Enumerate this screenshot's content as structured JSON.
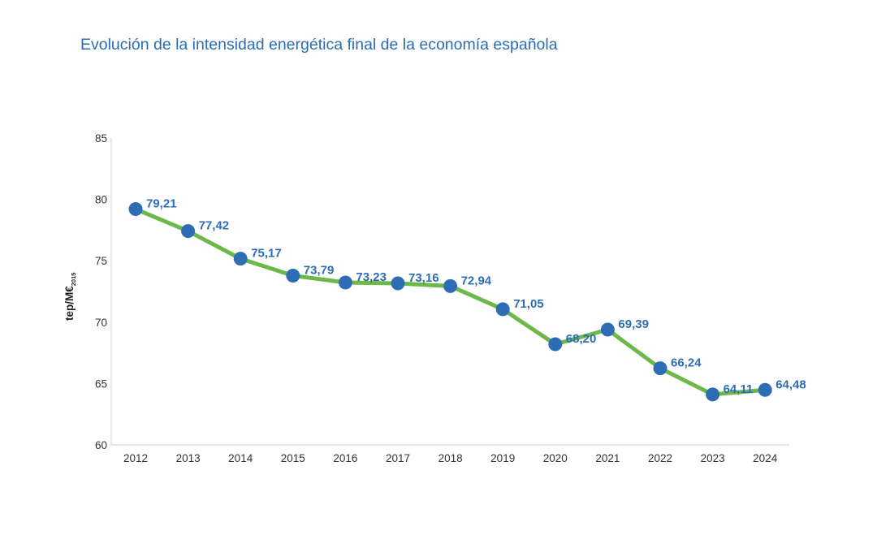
{
  "chart_data": {
    "type": "line",
    "title": "Evolución de la intensidad energética final de la economía española",
    "ylabel": "tep/M€",
    "ylabel_subscript": "2015",
    "xlabel": "",
    "categories": [
      "2012",
      "2013",
      "2014",
      "2015",
      "2016",
      "2017",
      "2018",
      "2019",
      "2020",
      "2021",
      "2022",
      "2023",
      "2024"
    ],
    "values": [
      79.21,
      77.42,
      75.17,
      73.79,
      73.23,
      73.16,
      72.94,
      71.05,
      68.2,
      69.39,
      66.24,
      64.11,
      64.48
    ],
    "data_labels": [
      "79,21",
      "77,42",
      "75,17",
      "73,79",
      "73,23",
      "73,16",
      "72,94",
      "71,05",
      "68,20",
      "69,39",
      "66,24",
      "64,11",
      "64,48"
    ],
    "ylim": [
      60,
      85
    ],
    "yticks": [
      "60",
      "65",
      "70",
      "75",
      "80",
      "85"
    ],
    "grid": false,
    "legend": "none",
    "line_color": "#6cb84a",
    "marker_color": "#2e6db4",
    "label_color": "#2e6db4"
  }
}
